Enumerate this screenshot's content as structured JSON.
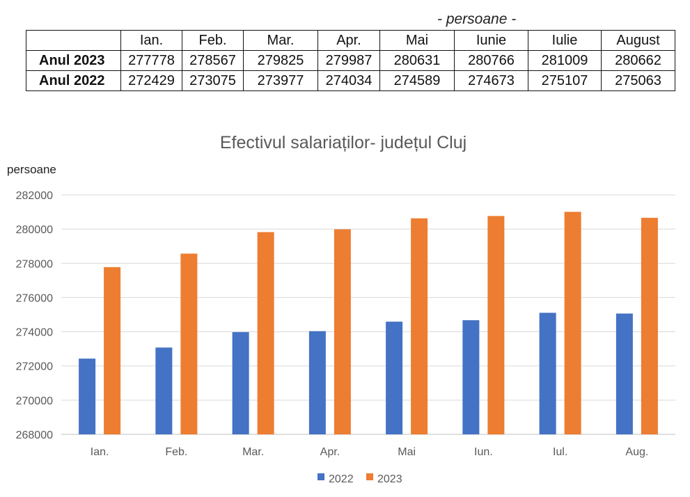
{
  "table": {
    "unit_note": "- persoane -",
    "headers": [
      "Ian.",
      "Feb.",
      "Mar.",
      "Apr.",
      "Mai",
      "Iunie",
      "Iulie",
      "August"
    ],
    "rows": [
      {
        "label": "Anul 2023",
        "values": [
          "277778",
          "278567",
          "279825",
          "279987",
          "280631",
          "280766",
          "281009",
          "280662"
        ]
      },
      {
        "label": "Anul 2022",
        "values": [
          "272429",
          "273075",
          "273977",
          "274034",
          "274589",
          "274673",
          "275107",
          "275063"
        ]
      }
    ]
  },
  "chart_data": {
    "type": "bar",
    "title": "Efectivul salariaților- județul Cluj",
    "ylabel": "persoane",
    "xlabel": "",
    "categories": [
      "Ian.",
      "Feb.",
      "Mar.",
      "Apr.",
      "Mai",
      "Iun.",
      "Iul.",
      "Aug."
    ],
    "ylim": [
      268000,
      282000
    ],
    "yticks": [
      268000,
      270000,
      272000,
      274000,
      276000,
      278000,
      280000,
      282000
    ],
    "grid": true,
    "legend_position": "bottom",
    "series": [
      {
        "name": "2022",
        "color": "#4472C4",
        "values": [
          272429,
          273075,
          273977,
          274034,
          274589,
          274673,
          275107,
          275063
        ]
      },
      {
        "name": "2023",
        "color": "#ED7D31",
        "values": [
          277778,
          278567,
          279825,
          279987,
          280631,
          280766,
          281009,
          280662
        ]
      }
    ]
  }
}
